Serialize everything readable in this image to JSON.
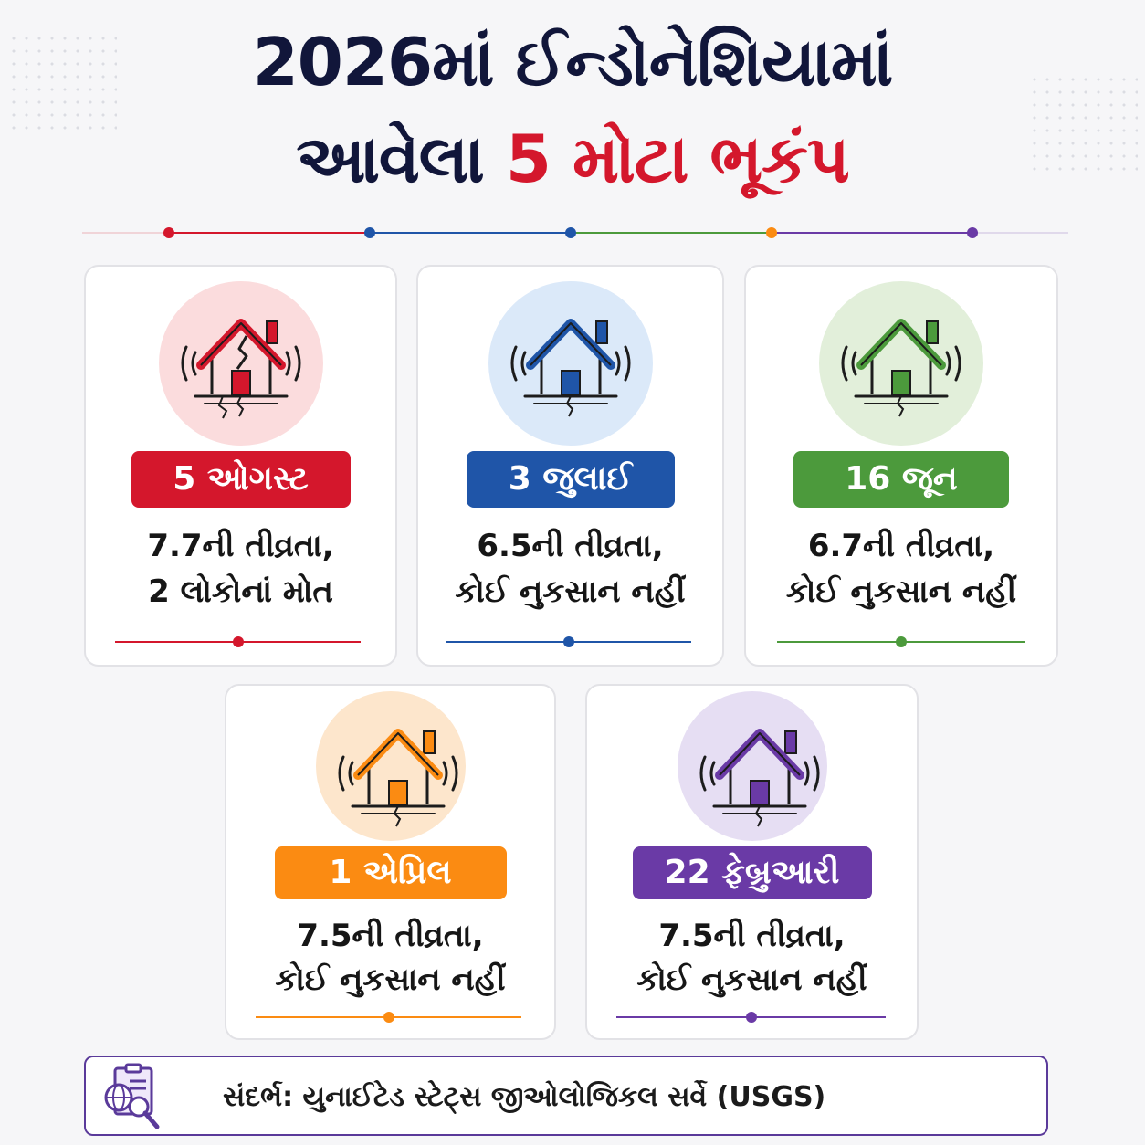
{
  "title": {
    "line1": "2026માં ઈન્ડોનેશિયામાં",
    "line2_prefix": "આવેલા",
    "line2_highlight": "5 મોટા ભૂકંપ"
  },
  "colors": {
    "red": "#d4172c",
    "blue": "#1f55a8",
    "green": "#4c9a3c",
    "orange": "#fb8b12",
    "purple": "#6a3aa6",
    "title": "#11163a"
  },
  "cards": [
    {
      "date": "5 ઓગસ્ટ",
      "line1": "7.7ની તીવ્રતા,",
      "line2": "2 લોકોનાં મોત",
      "color": "#d4172c",
      "tint": "#fbdcdd",
      "icon": "cracked-house-icon"
    },
    {
      "date": "3 જુલાઈ",
      "line1": "6.5ની તીવ્રતા,",
      "line2": "કોઈ નુકસાન નહીં",
      "color": "#1f55a8",
      "tint": "#dbe9f9",
      "icon": "shaking-house-icon"
    },
    {
      "date": "16 જૂન",
      "line1": "6.7ની તીવ્રતા,",
      "line2": "કોઈ નુકસાન નહીં",
      "color": "#4c9a3c",
      "tint": "#e2efda",
      "icon": "shaking-house-icon"
    },
    {
      "date": "1 એપ્રિલ",
      "line1": "7.5ની તીવ્રતા,",
      "line2": "કોઈ નુકસાન નહીં",
      "color": "#fb8b12",
      "tint": "#fde6cc",
      "icon": "shaking-house-icon"
    },
    {
      "date": "22 ફેબ્રુઆરી",
      "line1": "7.5ની તીવ્રતા,",
      "line2": "કોઈ નુકસાન નહીં",
      "color": "#6a3aa6",
      "tint": "#e6def3",
      "icon": "shaking-house-icon"
    }
  ],
  "source": {
    "text": "સંદર્ભ: યુનાઈટેડ સ્ટેટ્સ  જીઓલોજિકલ સર્વે (USGS)",
    "icon": "document-globe-magnifier-icon"
  }
}
